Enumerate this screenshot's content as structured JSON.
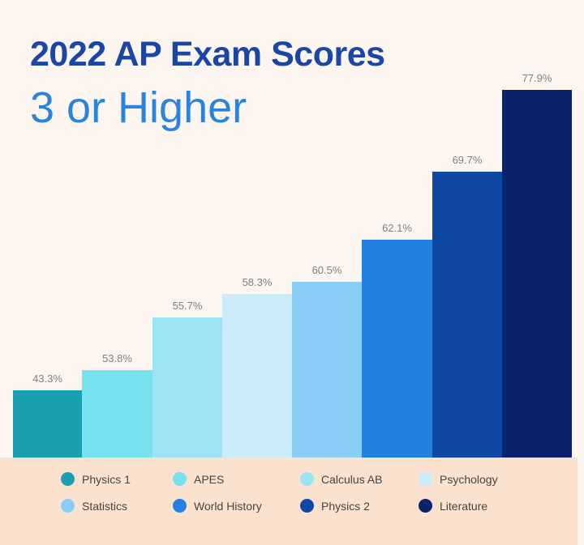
{
  "title": "2022 AP Exam Scores",
  "subtitle": "3 or Higher",
  "chart_data": {
    "type": "bar",
    "title": "2022 AP Exam Scores 3 or Higher",
    "categories": [
      "Physics 1",
      "APES",
      "Calculus AB",
      "Psychology",
      "Statistics",
      "World History",
      "Physics 2",
      "Literature"
    ],
    "values": [
      43.3,
      53.8,
      55.7,
      58.3,
      60.5,
      62.1,
      69.7,
      77.9
    ],
    "labels": [
      "43.3%",
      "53.8%",
      "55.7%",
      "58.3%",
      "60.5%",
      "62.1%",
      "69.7%",
      "77.9%"
    ],
    "colors": [
      "#1a9fb0",
      "#76e2ee",
      "#9be3f5",
      "#cbecfb",
      "#88cef6",
      "#2382e0",
      "#0f47a5",
      "#0b236b"
    ],
    "xlabel": "",
    "ylabel": "",
    "grid": false,
    "legend_position": "bottom"
  }
}
